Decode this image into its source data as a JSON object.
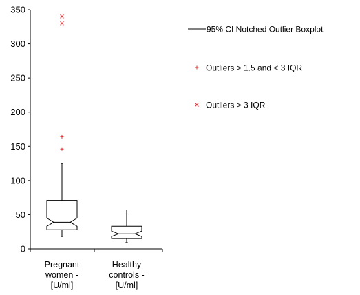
{
  "chart_data": {
    "type": "boxplot",
    "title": "",
    "xlabel": "",
    "ylabel": "",
    "ylim": [
      0,
      350
    ],
    "yticks": [
      0,
      50,
      100,
      150,
      200,
      250,
      300,
      350
    ],
    "grid": false,
    "legend_position": "right",
    "categories": [
      [
        "Pregnant",
        "women -",
        "[U/ml]"
      ],
      [
        "Healthy",
        "controls -",
        "[U/ml]"
      ]
    ],
    "boxes": [
      {
        "whisker_low": 18,
        "q1": 28,
        "notch_low": 33,
        "median": 39,
        "notch_high": 45,
        "q3": 71,
        "whisker_high": 125,
        "outliers_mild": [
          146,
          164
        ],
        "outliers_extreme": [
          330,
          340
        ]
      },
      {
        "whisker_low": 9,
        "q1": 15,
        "notch_low": 18,
        "median": 22,
        "notch_high": 26,
        "q3": 33,
        "whisker_high": 57,
        "outliers_mild": [],
        "outliers_extreme": []
      }
    ],
    "legend": [
      {
        "kind": "line",
        "label": "95% CI Notched Outlier Boxplot",
        "color": "#000000"
      },
      {
        "kind": "plus",
        "label": "Outliers > 1.5 and < 3 IQR",
        "color": "#e03030"
      },
      {
        "kind": "cross",
        "label": "Outliers > 3 IQR",
        "color": "#e03030"
      }
    ]
  }
}
